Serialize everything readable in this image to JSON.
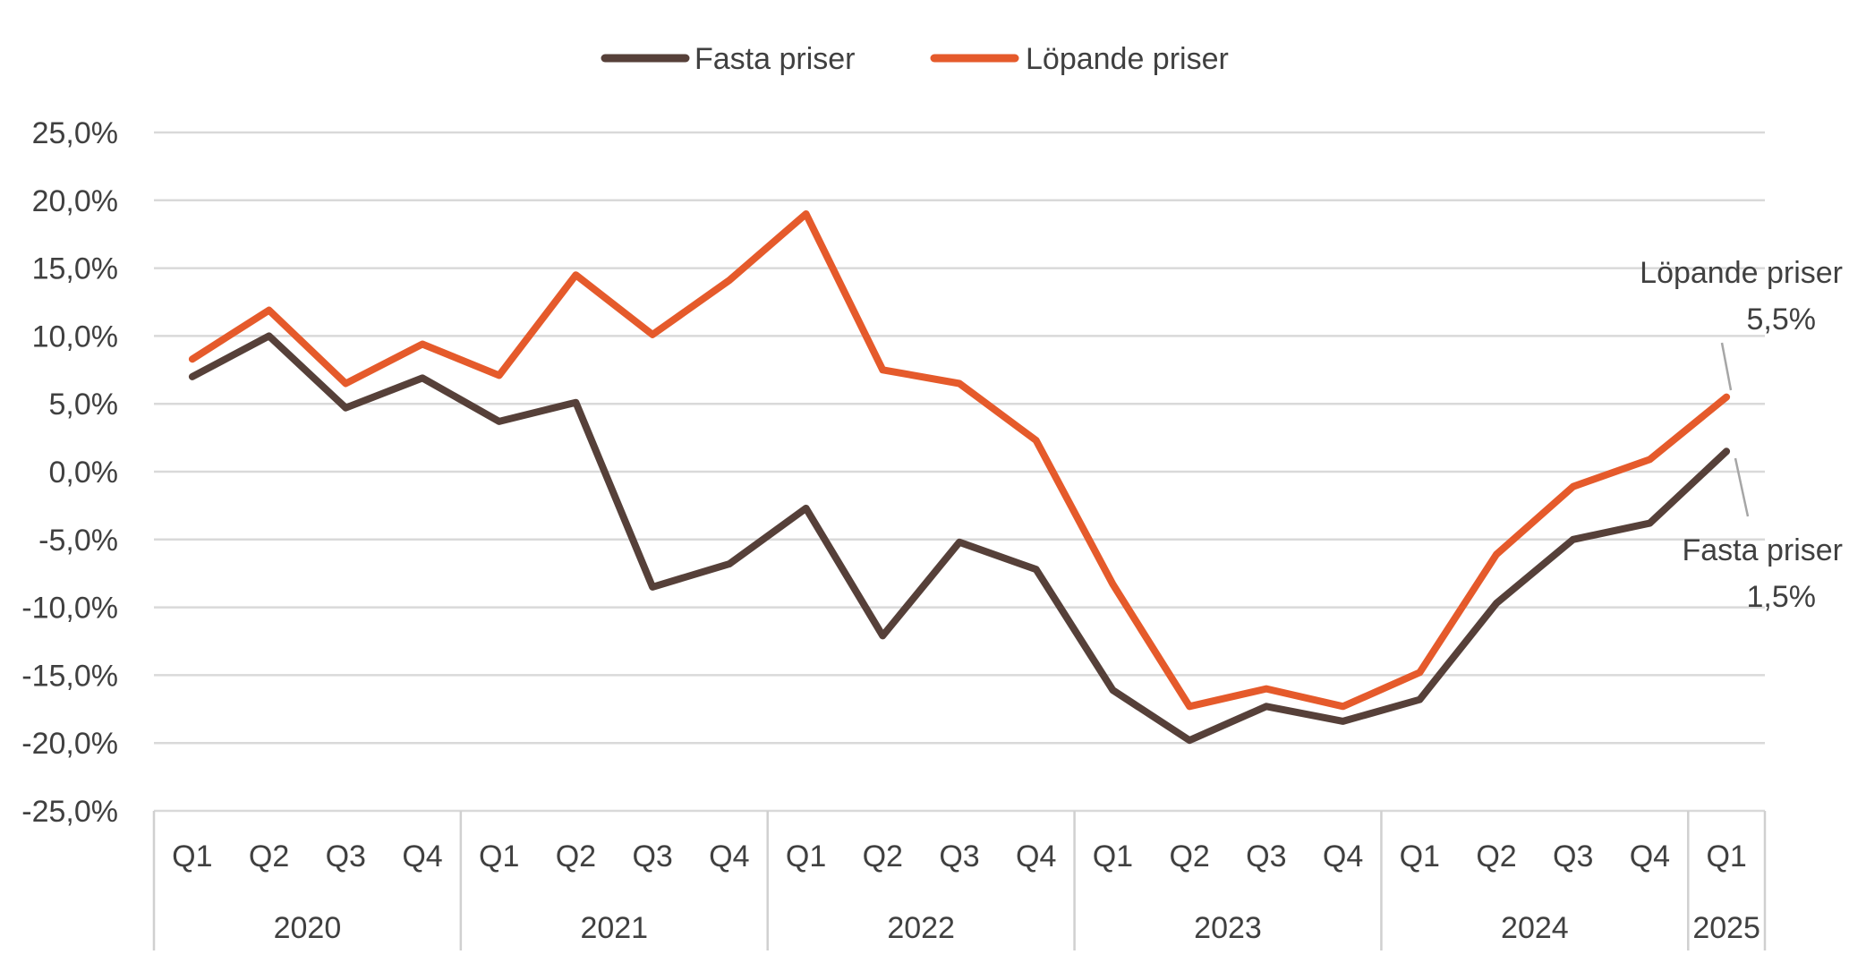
{
  "chart_data": {
    "type": "line",
    "title": "",
    "xlabel": "",
    "ylabel": "",
    "ylim": [
      -25,
      25
    ],
    "yticks": [
      25,
      20,
      15,
      10,
      5,
      0,
      -5,
      -10,
      -15,
      -20,
      -25
    ],
    "ytick_labels": [
      "25,0%",
      "20,0%",
      "15,0%",
      "10,0%",
      "5,0%",
      "0,0%",
      "-5,0%",
      "-10,0%",
      "-15,0%",
      "-20,0%",
      "-25,0%"
    ],
    "grid": true,
    "legend_position": "top-center",
    "categories": [
      "Q1",
      "Q2",
      "Q3",
      "Q4",
      "Q1",
      "Q2",
      "Q3",
      "Q4",
      "Q1",
      "Q2",
      "Q3",
      "Q4",
      "Q1",
      "Q2",
      "Q3",
      "Q4",
      "Q1",
      "Q2",
      "Q3",
      "Q4",
      "Q1"
    ],
    "year_groups": [
      {
        "label": "2020",
        "count": 4
      },
      {
        "label": "2021",
        "count": 4
      },
      {
        "label": "2022",
        "count": 4
      },
      {
        "label": "2023",
        "count": 4
      },
      {
        "label": "2024",
        "count": 4
      },
      {
        "label": "2025",
        "count": 1
      }
    ],
    "series": [
      {
        "name": "Fasta priser",
        "color": "#564039",
        "values": [
          7.0,
          10.0,
          4.7,
          6.9,
          3.7,
          5.1,
          -8.5,
          -6.8,
          -2.7,
          -12.1,
          -5.2,
          -7.2,
          -16.1,
          -19.8,
          -17.3,
          -18.4,
          -16.8,
          -9.7,
          -5.0,
          -3.8,
          1.5
        ]
      },
      {
        "name": "Löpande priser",
        "color": "#e55a2b",
        "values": [
          8.3,
          11.9,
          6.5,
          9.4,
          7.1,
          14.5,
          10.1,
          14.1,
          19.0,
          7.5,
          6.5,
          2.3,
          -8.3,
          -17.3,
          -16.0,
          -17.3,
          -14.8,
          -6.1,
          -1.1,
          0.9,
          5.5
        ]
      }
    ],
    "annotations": [
      {
        "series": "Löpande priser",
        "line1": "Löpande priser",
        "line2": "5,5%"
      },
      {
        "series": "Fasta priser",
        "line1": "Fasta priser",
        "line2": "1,5%"
      }
    ]
  }
}
